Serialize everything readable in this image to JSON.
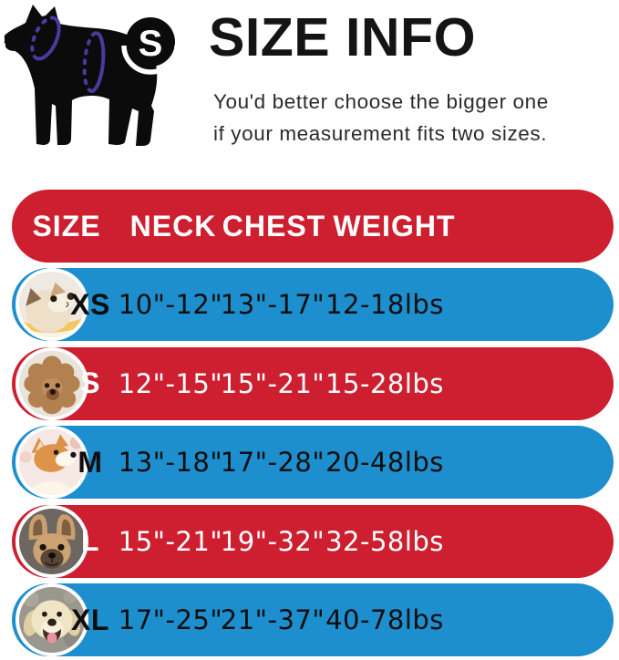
{
  "header": {
    "title": "SIZE INFO",
    "subtitle_line1": "You'd better choose the bigger one",
    "subtitle_line2": "if your measurement fits two sizes.",
    "illustration": "dog-silhouette-with-neck-and-chest-measure-ellipses"
  },
  "table": {
    "columns": [
      "SIZE",
      "NECK",
      "CHEST",
      "WEIGHT"
    ],
    "rows": [
      {
        "size": "XS",
        "neck": "10\"-12\"",
        "chest": "13\"-17\"",
        "weight": "12-18lbs",
        "photo": "pomeranian",
        "variant": "blue"
      },
      {
        "size": "S",
        "neck": "12\"-15\"",
        "chest": "15\"-21\"",
        "weight": "15-28lbs",
        "photo": "poodle",
        "variant": "red"
      },
      {
        "size": "M",
        "neck": "13\"-18\"",
        "chest": "17\"-28\"",
        "weight": "20-48lbs",
        "photo": "shiba-inu",
        "variant": "blue"
      },
      {
        "size": "L",
        "neck": "15\"-21\"",
        "chest": "19\"-32\"",
        "weight": "32-58lbs",
        "photo": "french-bulldog",
        "variant": "red"
      },
      {
        "size": "XL",
        "neck": "17\"-25\"",
        "chest": "21\"-37\"",
        "weight": "40-78lbs",
        "photo": "labrador",
        "variant": "blue"
      }
    ]
  },
  "colors": {
    "row_red": "#CE1F30",
    "row_blue": "#1E8FCE",
    "measure_purple": "#4A3AA0",
    "text_dark": "#141414",
    "text_light": "#FFFFFF"
  }
}
